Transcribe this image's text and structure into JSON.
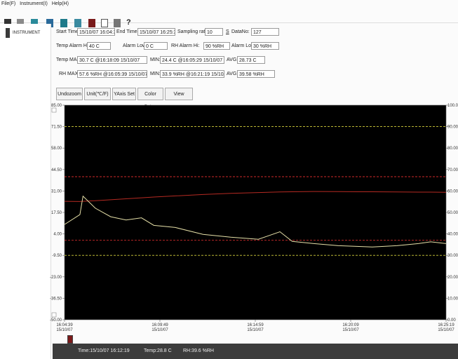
{
  "menu": [
    "File(F)",
    "Instrument(I)",
    "Help(H)"
  ],
  "toolbar_help": "?",
  "sidebar": {
    "device": "INSTRUMENT"
  },
  "info": {
    "start_time": {
      "label": "Start Time:",
      "value": "15/10/07 16:04:39"
    },
    "end_time": {
      "label": "End Time:",
      "value": "15/10/07 16:25:39"
    },
    "sampling_rate": {
      "label": "Sampling rate:",
      "value": "10",
      "unit": "S"
    },
    "data_no": {
      "label": "DataNo:",
      "value": "127"
    },
    "temp_alarm_hi": {
      "label": "Temp Alarm Hi:",
      "value": "40 C"
    },
    "temp_alarm_low": {
      "label": "Alarm Low:",
      "value": "0 C"
    },
    "rh_alarm_hi": {
      "label": "RH Alarm Hi:",
      "value": "90 %RH"
    },
    "rh_alarm_low": {
      "label": "Alarm Low:",
      "value": "30 %RH"
    },
    "temp_max": {
      "label": "Temp MAX:",
      "value": "30.7 C @16:18:09 15/10/07"
    },
    "temp_min": {
      "label": "MIN:",
      "value": "24.4 C @16:05:29 15/10/07"
    },
    "temp_avg": {
      "label": "AVG:",
      "value": "28.73 C"
    },
    "rh_max": {
      "label": "RH MAX:",
      "value": "57.6 %RH @16:05:39 15/10/07"
    },
    "rh_min": {
      "label": "MIN:",
      "value": "33.9 %RH @16:21:19 15/10/07"
    },
    "rh_avg": {
      "label": "AVG:",
      "value": "39.58 %RH"
    }
  },
  "buttons": [
    "Undozoom",
    "Unit(℃/F)",
    "YAxis Set",
    "Color Setup",
    "View"
  ],
  "status": [
    "Time:15/10/07 16:12:19",
    "Temp:28.8 C",
    "RH:39.6 %RH"
  ],
  "chart_data": {
    "type": "line",
    "x": [
      "16:04:39",
      "16:05:29",
      "16:05:39",
      "16:06:19",
      "16:07:09",
      "16:07:59",
      "16:08:49",
      "16:09:29",
      "16:10:39",
      "16:12:09",
      "16:13:39",
      "16:15:09",
      "16:16:19",
      "16:16:59",
      "16:18:09",
      "16:19:29",
      "16:20:29",
      "16:21:19",
      "16:22:39",
      "16:23:49",
      "16:24:29",
      "16:25:19"
    ],
    "xlim": [
      "16:04:39",
      "16:25:19"
    ],
    "xticks": [
      {
        "value": "16:04:39",
        "label": [
          "16:04:39",
          "15/10/07"
        ]
      },
      {
        "value": "16:09:49",
        "label": [
          "16:09:49",
          "15/10/07"
        ]
      },
      {
        "value": "16:14:59",
        "label": [
          "16:14:59",
          "15/10/07"
        ]
      },
      {
        "value": "16:20:09",
        "label": [
          "16:20:09",
          "15/10/07"
        ]
      },
      {
        "value": "16:25:19",
        "label": [
          "16:25:19",
          "15/10/07"
        ]
      }
    ],
    "ylim": [
      -50,
      85
    ],
    "yticks": [
      {
        "value": 85,
        "label": "85.00"
      },
      {
        "value": 71.5,
        "label": "71.50"
      },
      {
        "value": 58,
        "label": "58.00"
      },
      {
        "value": 44.5,
        "label": "44.50"
      },
      {
        "value": 31,
        "label": "31.00"
      },
      {
        "value": 17.5,
        "label": "17.50"
      },
      {
        "value": 4,
        "label": "4.00"
      },
      {
        "value": -9.5,
        "label": "-9.50"
      },
      {
        "value": -23,
        "label": "-23.00"
      },
      {
        "value": -36.5,
        "label": "-36.50"
      },
      {
        "value": -50,
        "label": "-50.00"
      }
    ],
    "y2lim": [
      0,
      100
    ],
    "y2ticks": [
      {
        "value": 100,
        "label": "100.00"
      },
      {
        "value": 90,
        "label": "90.00"
      },
      {
        "value": 80,
        "label": "80.00"
      },
      {
        "value": 70,
        "label": "70.00"
      },
      {
        "value": 60,
        "label": "60.00"
      },
      {
        "value": 50,
        "label": "50.00"
      },
      {
        "value": 40,
        "label": "40.00"
      },
      {
        "value": 30,
        "label": "30.00"
      },
      {
        "value": 20,
        "label": "20.00"
      },
      {
        "value": 10,
        "label": "10.00"
      },
      {
        "value": 0,
        "label": "0.00"
      }
    ],
    "series": [
      {
        "color": "#b52a22",
        "axis": "y",
        "values": [
          24.5,
          24.4,
          24.5,
          24.9,
          25.5,
          26.1,
          26.7,
          27.2,
          27.9,
          28.8,
          29.5,
          30.0,
          30.4,
          30.5,
          30.7,
          30.6,
          30.5,
          30.5,
          30.4,
          30.3,
          30.3,
          30.2
        ]
      },
      {
        "color": "#e6e0a8",
        "axis": "y2",
        "values": [
          44.4,
          49,
          57.6,
          52,
          48,
          46.5,
          47.5,
          44,
          43,
          39.8,
          38.5,
          37.5,
          41,
          36.5,
          35.5,
          34.5,
          34.2,
          33.9,
          34.5,
          35.5,
          36.3,
          35.5
        ]
      }
    ],
    "thresholds": [
      {
        "value": 40,
        "axis": "y",
        "color": "#d02a2a"
      },
      {
        "value": 0,
        "axis": "y",
        "color": "#d02a2a"
      },
      {
        "value": 90,
        "axis": "y2",
        "color": "#d6d23c"
      },
      {
        "value": 30,
        "axis": "y2",
        "color": "#d6d23c"
      }
    ],
    "background": "#000000"
  }
}
